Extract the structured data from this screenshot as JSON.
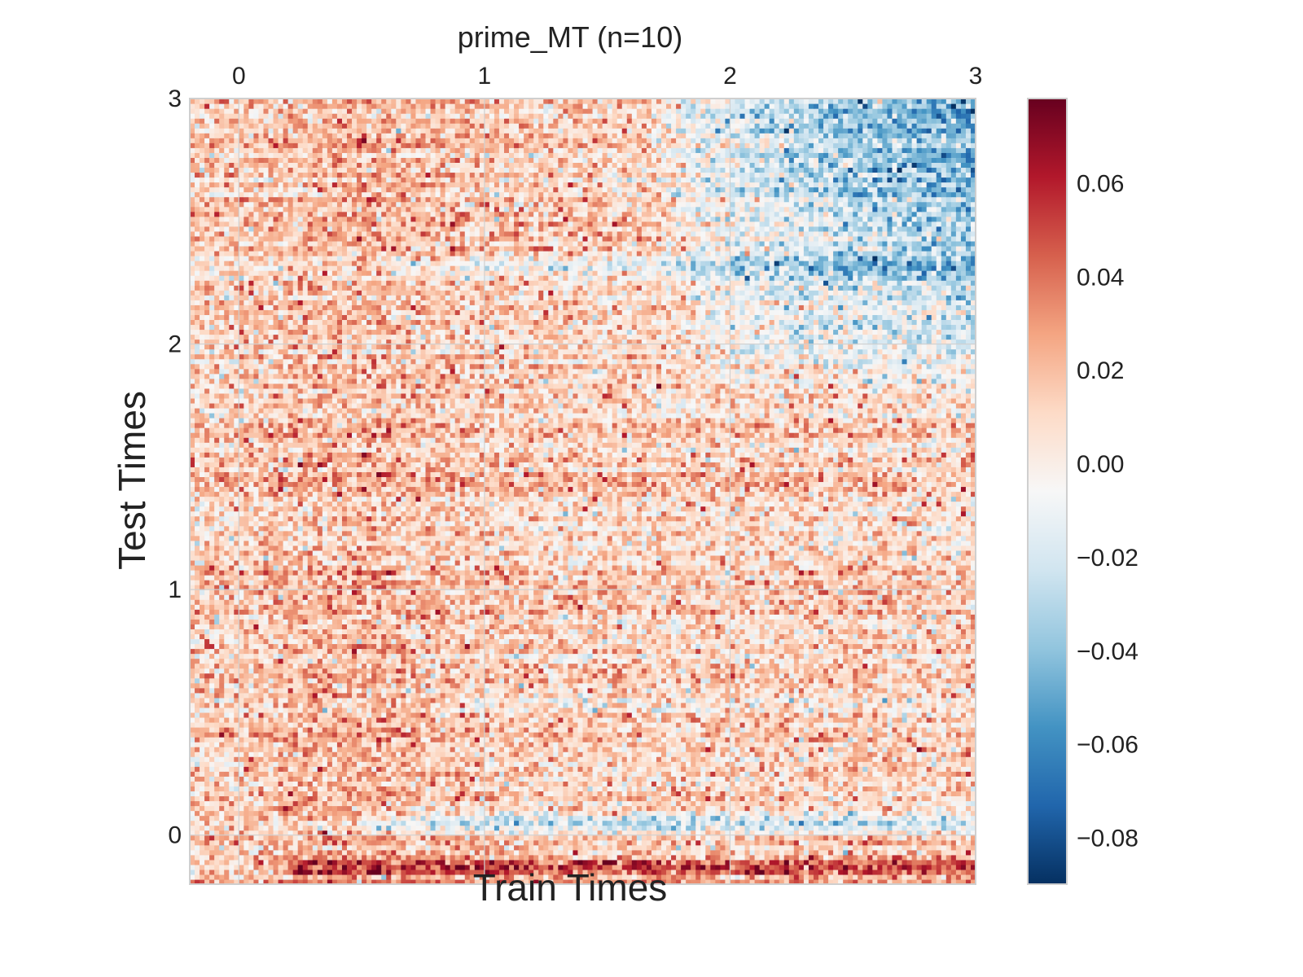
{
  "chart_data": {
    "type": "heatmap",
    "title": "prime_MT (n=10)",
    "xlabel": "Train Times",
    "ylabel": "Test Times",
    "xlim": [
      -0.2,
      3.0
    ],
    "ylim": [
      -0.2,
      3.0
    ],
    "xticks": [
      0,
      1,
      2,
      3
    ],
    "xtick_labels": [
      "0",
      "1",
      "2",
      "3"
    ],
    "yticks": [
      0,
      1,
      2,
      3
    ],
    "ytick_labels": [
      "0",
      "1",
      "2",
      "3"
    ],
    "x_axis_position": "top",
    "grid": true,
    "colormap": "RdBu_r",
    "colorbar": {
      "vmin": -0.09,
      "vmax": 0.078,
      "ticks": [
        0.06,
        0.04,
        0.02,
        0.0,
        -0.02,
        -0.04,
        -0.06,
        -0.08
      ],
      "tick_labels": [
        "0.06",
        "0.04",
        "0.02",
        "0.00",
        "−0.02",
        "−0.04",
        "−0.06",
        "−0.08"
      ]
    },
    "grid_resolution": [
      160,
      160
    ],
    "description_of_values": "Noisy generalization matrix; mostly positive (red) for train<1 s, negative (blue) in upper-right (train>2 s, test>2 s), strong blue band near test≈0.05 s, strong red band near test≈−0.15 s."
  },
  "colors": {
    "axis_frame": "#cfcfcf",
    "grid": "#d0d0d0"
  }
}
